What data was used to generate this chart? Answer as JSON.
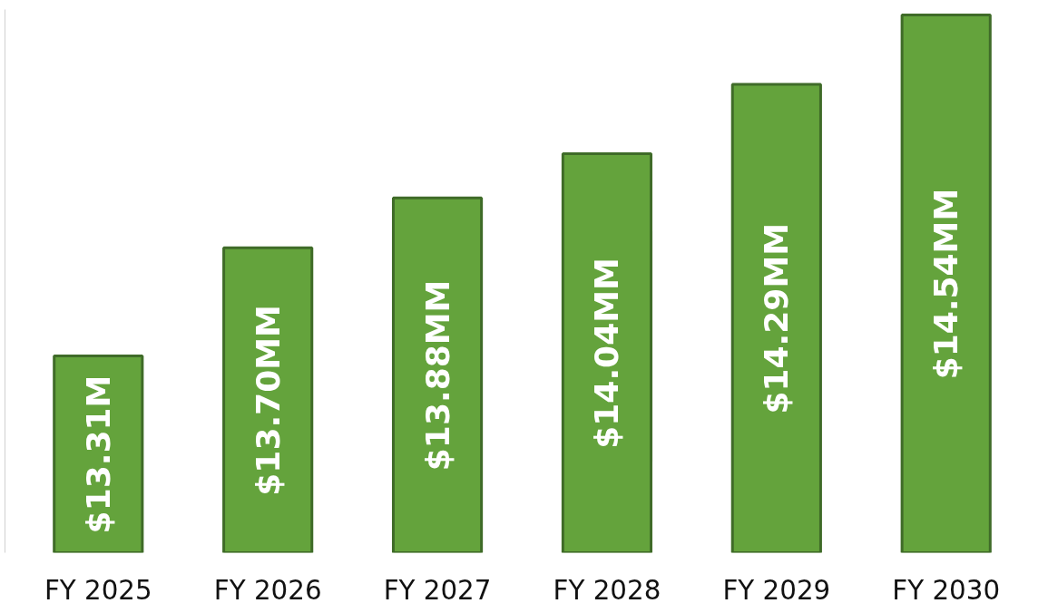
{
  "chart_data": {
    "type": "bar",
    "categories": [
      "FY 2025",
      "FY 2026",
      "FY 2027",
      "FY 2028",
      "FY 2029",
      "FY 2030"
    ],
    "values": [
      13.31,
      13.7,
      13.88,
      14.04,
      14.29,
      14.54
    ],
    "color": "#64a33c",
    "value_labels": [
      "$13.31M",
      "$13.70MM",
      "$13.88MM",
      "$14.04MM",
      "$14.29MM",
      "$14.54MM"
    ],
    "ylim": [
      12.6,
      14.56
    ],
    "tick_labels": "x",
    "grid": false
  }
}
